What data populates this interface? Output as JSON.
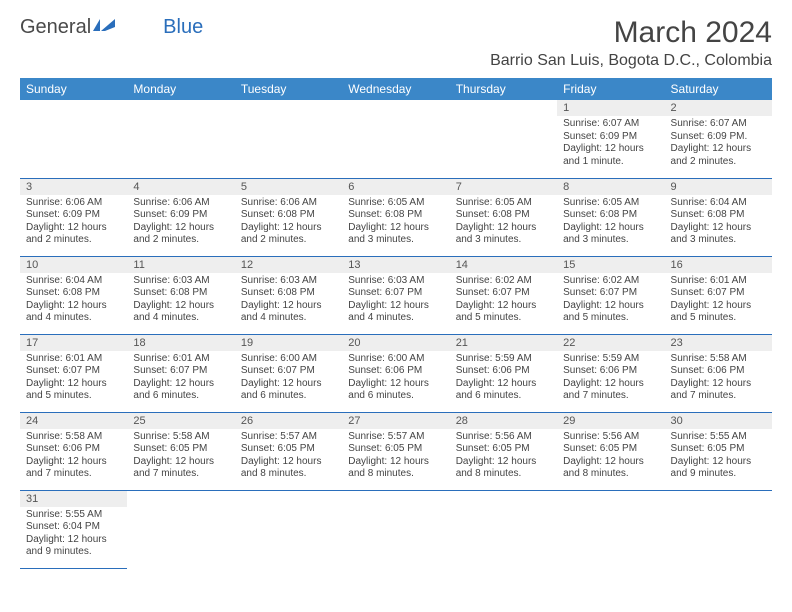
{
  "logo": {
    "text1": "General",
    "text2": "Blue"
  },
  "title": "March 2024",
  "location": "Barrio San Luis, Bogota D.C., Colombia",
  "colors": {
    "header_bg": "#3b87c8",
    "header_text": "#ffffff",
    "row_divider": "#2a6ebb",
    "daynum_bg": "#eeeeee",
    "body_text": "#444444",
    "logo_accent": "#2a6ebb"
  },
  "typography": {
    "title_fontsize_pt": 22,
    "location_fontsize_pt": 12,
    "dayheader_fontsize_pt": 9,
    "daynum_fontsize_pt": 8,
    "cell_fontsize_pt": 7.5
  },
  "day_headers": [
    "Sunday",
    "Monday",
    "Tuesday",
    "Wednesday",
    "Thursday",
    "Friday",
    "Saturday"
  ],
  "weeks": [
    [
      null,
      null,
      null,
      null,
      null,
      {
        "n": "1",
        "sunrise": "Sunrise: 6:07 AM",
        "sunset": "Sunset: 6:09 PM",
        "daylight": "Daylight: 12 hours and 1 minute."
      },
      {
        "n": "2",
        "sunrise": "Sunrise: 6:07 AM",
        "sunset": "Sunset: 6:09 PM.",
        "daylight": "Daylight: 12 hours and 2 minutes."
      }
    ],
    [
      {
        "n": "3",
        "sunrise": "Sunrise: 6:06 AM",
        "sunset": "Sunset: 6:09 PM",
        "daylight": "Daylight: 12 hours and 2 minutes."
      },
      {
        "n": "4",
        "sunrise": "Sunrise: 6:06 AM",
        "sunset": "Sunset: 6:09 PM",
        "daylight": "Daylight: 12 hours and 2 minutes."
      },
      {
        "n": "5",
        "sunrise": "Sunrise: 6:06 AM",
        "sunset": "Sunset: 6:08 PM",
        "daylight": "Daylight: 12 hours and 2 minutes."
      },
      {
        "n": "6",
        "sunrise": "Sunrise: 6:05 AM",
        "sunset": "Sunset: 6:08 PM",
        "daylight": "Daylight: 12 hours and 3 minutes."
      },
      {
        "n": "7",
        "sunrise": "Sunrise: 6:05 AM",
        "sunset": "Sunset: 6:08 PM",
        "daylight": "Daylight: 12 hours and 3 minutes."
      },
      {
        "n": "8",
        "sunrise": "Sunrise: 6:05 AM",
        "sunset": "Sunset: 6:08 PM",
        "daylight": "Daylight: 12 hours and 3 minutes."
      },
      {
        "n": "9",
        "sunrise": "Sunrise: 6:04 AM",
        "sunset": "Sunset: 6:08 PM",
        "daylight": "Daylight: 12 hours and 3 minutes."
      }
    ],
    [
      {
        "n": "10",
        "sunrise": "Sunrise: 6:04 AM",
        "sunset": "Sunset: 6:08 PM",
        "daylight": "Daylight: 12 hours and 4 minutes."
      },
      {
        "n": "11",
        "sunrise": "Sunrise: 6:03 AM",
        "sunset": "Sunset: 6:08 PM",
        "daylight": "Daylight: 12 hours and 4 minutes."
      },
      {
        "n": "12",
        "sunrise": "Sunrise: 6:03 AM",
        "sunset": "Sunset: 6:08 PM",
        "daylight": "Daylight: 12 hours and 4 minutes."
      },
      {
        "n": "13",
        "sunrise": "Sunrise: 6:03 AM",
        "sunset": "Sunset: 6:07 PM",
        "daylight": "Daylight: 12 hours and 4 minutes."
      },
      {
        "n": "14",
        "sunrise": "Sunrise: 6:02 AM",
        "sunset": "Sunset: 6:07 PM",
        "daylight": "Daylight: 12 hours and 5 minutes."
      },
      {
        "n": "15",
        "sunrise": "Sunrise: 6:02 AM",
        "sunset": "Sunset: 6:07 PM",
        "daylight": "Daylight: 12 hours and 5 minutes."
      },
      {
        "n": "16",
        "sunrise": "Sunrise: 6:01 AM",
        "sunset": "Sunset: 6:07 PM",
        "daylight": "Daylight: 12 hours and 5 minutes."
      }
    ],
    [
      {
        "n": "17",
        "sunrise": "Sunrise: 6:01 AM",
        "sunset": "Sunset: 6:07 PM",
        "daylight": "Daylight: 12 hours and 5 minutes."
      },
      {
        "n": "18",
        "sunrise": "Sunrise: 6:01 AM",
        "sunset": "Sunset: 6:07 PM",
        "daylight": "Daylight: 12 hours and 6 minutes."
      },
      {
        "n": "19",
        "sunrise": "Sunrise: 6:00 AM",
        "sunset": "Sunset: 6:07 PM",
        "daylight": "Daylight: 12 hours and 6 minutes."
      },
      {
        "n": "20",
        "sunrise": "Sunrise: 6:00 AM",
        "sunset": "Sunset: 6:06 PM",
        "daylight": "Daylight: 12 hours and 6 minutes."
      },
      {
        "n": "21",
        "sunrise": "Sunrise: 5:59 AM",
        "sunset": "Sunset: 6:06 PM",
        "daylight": "Daylight: 12 hours and 6 minutes."
      },
      {
        "n": "22",
        "sunrise": "Sunrise: 5:59 AM",
        "sunset": "Sunset: 6:06 PM",
        "daylight": "Daylight: 12 hours and 7 minutes."
      },
      {
        "n": "23",
        "sunrise": "Sunrise: 5:58 AM",
        "sunset": "Sunset: 6:06 PM",
        "daylight": "Daylight: 12 hours and 7 minutes."
      }
    ],
    [
      {
        "n": "24",
        "sunrise": "Sunrise: 5:58 AM",
        "sunset": "Sunset: 6:06 PM",
        "daylight": "Daylight: 12 hours and 7 minutes."
      },
      {
        "n": "25",
        "sunrise": "Sunrise: 5:58 AM",
        "sunset": "Sunset: 6:05 PM",
        "daylight": "Daylight: 12 hours and 7 minutes."
      },
      {
        "n": "26",
        "sunrise": "Sunrise: 5:57 AM",
        "sunset": "Sunset: 6:05 PM",
        "daylight": "Daylight: 12 hours and 8 minutes."
      },
      {
        "n": "27",
        "sunrise": "Sunrise: 5:57 AM",
        "sunset": "Sunset: 6:05 PM",
        "daylight": "Daylight: 12 hours and 8 minutes."
      },
      {
        "n": "28",
        "sunrise": "Sunrise: 5:56 AM",
        "sunset": "Sunset: 6:05 PM",
        "daylight": "Daylight: 12 hours and 8 minutes."
      },
      {
        "n": "29",
        "sunrise": "Sunrise: 5:56 AM",
        "sunset": "Sunset: 6:05 PM",
        "daylight": "Daylight: 12 hours and 8 minutes."
      },
      {
        "n": "30",
        "sunrise": "Sunrise: 5:55 AM",
        "sunset": "Sunset: 6:05 PM",
        "daylight": "Daylight: 12 hours and 9 minutes."
      }
    ],
    [
      {
        "n": "31",
        "sunrise": "Sunrise: 5:55 AM",
        "sunset": "Sunset: 6:04 PM",
        "daylight": "Daylight: 12 hours and 9 minutes."
      },
      null,
      null,
      null,
      null,
      null,
      null
    ]
  ]
}
